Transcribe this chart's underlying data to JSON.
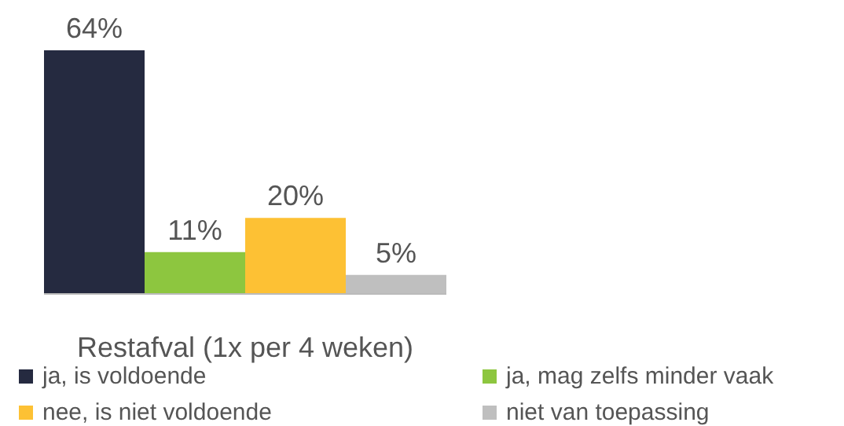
{
  "chart_data": {
    "type": "bar",
    "xlabel": "Restafval (1x per 4 weken)",
    "categories": [
      null,
      null,
      null,
      null
    ],
    "stacked": true,
    "series": [
      {
        "name": "ja, is voldoende",
        "color": "#252a40",
        "values": [
          64,
          null,
          null,
          null
        ],
        "value_labels": [
          "64%",
          null,
          null,
          null
        ]
      },
      {
        "name": "ja, mag zelfs minder vaak",
        "color": "#8dc63f",
        "values": [
          null,
          11,
          null,
          null
        ],
        "value_labels": [
          null,
          "11%",
          null,
          null
        ]
      },
      {
        "name": "nee, is niet voldoende",
        "color": "#fdc134",
        "values": [
          null,
          null,
          20,
          null
        ],
        "value_labels": [
          null,
          null,
          "20%",
          null
        ]
      },
      {
        "name": "niet van toepassing",
        "color": "#bfbfbf",
        "values": [
          null,
          null,
          null,
          5
        ],
        "value_labels": [
          null,
          null,
          null,
          "5%"
        ]
      }
    ],
    "legend": "bottom",
    "grid": false
  }
}
